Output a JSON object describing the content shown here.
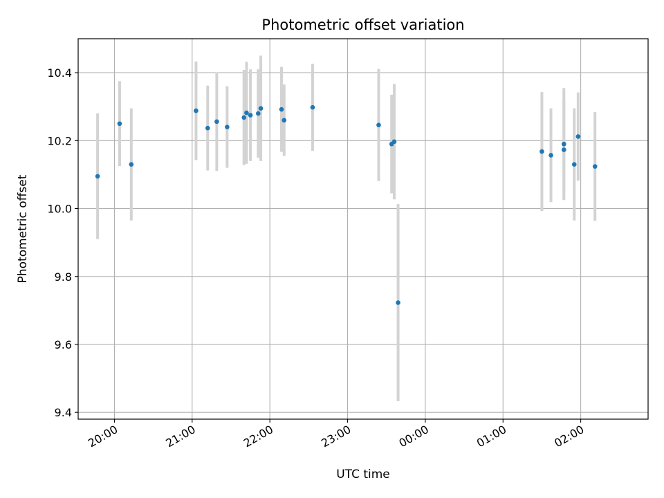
{
  "chart_data": {
    "type": "scatter",
    "title": "Photometric offset variation",
    "xlabel": "UTC time",
    "ylabel": "Photometric offset",
    "grid": true,
    "legend": "none",
    "x_tick_labels": [
      "20:00",
      "21:00",
      "22:00",
      "23:00",
      "00:00",
      "01:00",
      "02:00"
    ],
    "x_tick_values": [
      "20:00",
      "21:00",
      "22:00",
      "23:00",
      "00:00",
      "01:00",
      "02:00"
    ],
    "xlim": [
      "19:32",
      "02:52"
    ],
    "y_ticks": [
      9.4,
      9.6,
      9.8,
      10.0,
      10.2,
      10.4
    ],
    "y_tick_labels": [
      "9.4",
      "9.6",
      "9.8",
      "10.0",
      "10.2",
      "10.4"
    ],
    "ylim": [
      9.38,
      10.5
    ],
    "colors": {
      "point": "#1f77b4",
      "errorbar": "#d3d3d3",
      "grid": "#b0b0b0"
    },
    "series": [
      {
        "points": [
          {
            "x": "19:47",
            "y": 10.095,
            "yerr": 0.185
          },
          {
            "x": "20:04",
            "y": 10.25,
            "yerr": 0.125
          },
          {
            "x": "20:13",
            "y": 10.13,
            "yerr": 0.165
          },
          {
            "x": "21:03",
            "y": 10.288,
            "yerr": 0.145
          },
          {
            "x": "21:12",
            "y": 10.237,
            "yerr": 0.125
          },
          {
            "x": "21:19",
            "y": 10.256,
            "yerr": 0.145
          },
          {
            "x": "21:27",
            "y": 10.24,
            "yerr": 0.12
          },
          {
            "x": "21:40",
            "y": 10.268,
            "yerr": 0.14
          },
          {
            "x": "21:42",
            "y": 10.282,
            "yerr": 0.15
          },
          {
            "x": "21:45",
            "y": 10.275,
            "yerr": 0.135
          },
          {
            "x": "21:51",
            "y": 10.28,
            "yerr": 0.13
          },
          {
            "x": "21:53",
            "y": 10.295,
            "yerr": 0.155
          },
          {
            "x": "22:09",
            "y": 10.292,
            "yerr": 0.125
          },
          {
            "x": "22:11",
            "y": 10.26,
            "yerr": 0.105
          },
          {
            "x": "22:33",
            "y": 10.298,
            "yerr": 0.128
          },
          {
            "x": "23:24",
            "y": 10.246,
            "yerr": 0.165
          },
          {
            "x": "23:34",
            "y": 10.19,
            "yerr": 0.145
          },
          {
            "x": "23:36",
            "y": 10.197,
            "yerr": 0.17
          },
          {
            "x": "23:39",
            "y": 9.723,
            "yerr": 0.29
          },
          {
            "x": "01:30",
            "y": 10.168,
            "yerr": 0.175
          },
          {
            "x": "01:37",
            "y": 10.157,
            "yerr": 0.138
          },
          {
            "x": "01:47",
            "y": 10.19,
            "yerr": 0.165
          },
          {
            "x": "01:47",
            "y": 10.173,
            "yerr": 0.145
          },
          {
            "x": "01:55",
            "y": 10.13,
            "yerr": 0.165
          },
          {
            "x": "01:58",
            "y": 10.212,
            "yerr": 0.13
          },
          {
            "x": "02:11",
            "y": 10.124,
            "yerr": 0.16
          }
        ]
      }
    ]
  }
}
